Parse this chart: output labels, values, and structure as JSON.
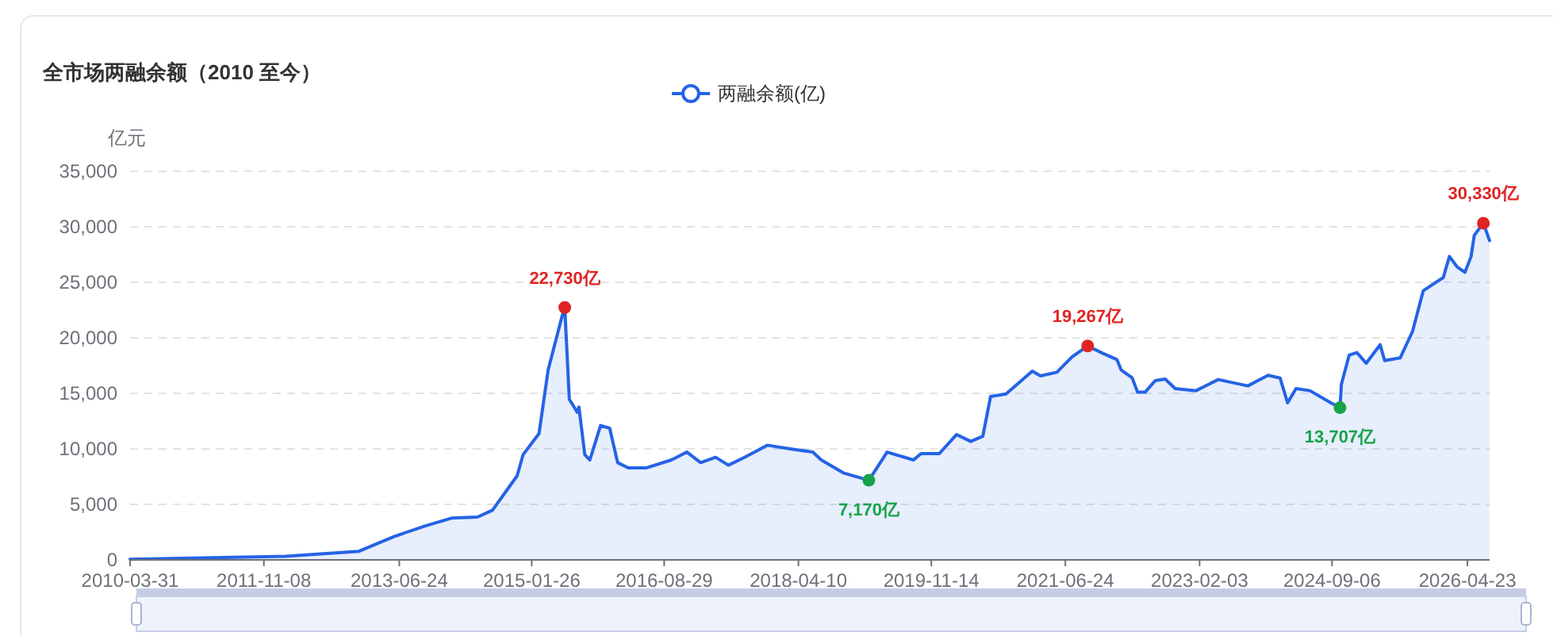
{
  "chart_data": {
    "type": "area",
    "title": "全市场两融余额（2010 至今）",
    "ylabel": "亿元",
    "legend": "top",
    "grid": "y",
    "xlim": [
      "2010-03-31",
      "2026-07-29"
    ],
    "xticks": [
      "2010-03-31",
      "2011-11-08",
      "2013-06-24",
      "2015-01-26",
      "2016-08-29",
      "2018-04-10",
      "2019-11-14",
      "2021-06-24",
      "2023-02-03",
      "2024-09-06",
      "2026-04-23"
    ],
    "ylim": [
      0,
      35000
    ],
    "yticks": [
      0,
      {
        "value": 5000,
        "label": "5,000"
      },
      {
        "value": 10000,
        "label": "10,000"
      },
      {
        "value": 15000,
        "label": "15,000"
      },
      {
        "value": 20000,
        "label": "20,000"
      },
      {
        "value": 25000,
        "label": "25,000"
      },
      {
        "value": 30000,
        "label": "30,000"
      },
      {
        "value": 35000,
        "label": "35,000"
      }
    ],
    "x": [
      "2010-03-31",
      "2012-02-12",
      "2012-12-27",
      "2013-06-01",
      "2013-10-14",
      "2014-02-08",
      "2014-06-02",
      "2014-08-07",
      "2014-11-23",
      "2014-12-19",
      "2015-02-27",
      "2015-04-08",
      "2015-06-07",
      "2015-06-20",
      "2015-07-10",
      "2015-08-14",
      "2015-08-21",
      "2015-09-16",
      "2015-10-08",
      "2015-11-24",
      "2016-01-03",
      "2016-02-07",
      "2016-03-24",
      "2016-06-13",
      "2016-09-30",
      "2016-12-07",
      "2017-02-05",
      "2017-04-12",
      "2017-06-07",
      "2017-08-13",
      "2017-09-30",
      "2017-11-24",
      "2018-03-04",
      "2018-06-12",
      "2018-07-19",
      "2018-10-27",
      "2019-02-13",
      "2019-05-04",
      "2019-08-28",
      "2019-09-30",
      "2019-12-19",
      "2020-03-04",
      "2020-05-05",
      "2020-06-27",
      "2020-07-31",
      "2020-10-07",
      "2021-01-30",
      "2021-03-07",
      "2021-05-18",
      "2021-07-24",
      "2021-09-30",
      "2021-12-06",
      "2022-02-05",
      "2022-02-24",
      "2022-04-13",
      "2022-05-07",
      "2022-06-09",
      "2022-07-23",
      "2022-09-05",
      "2022-10-19",
      "2023-01-18",
      "2023-04-26",
      "2023-09-03",
      "2023-10-16",
      "2023-12-01",
      "2024-01-22",
      "2024-02-24",
      "2024-04-01",
      "2024-06-01",
      "2024-09-01",
      "2024-10-11",
      "2024-10-17",
      "2024-11-20",
      "2024-12-24",
      "2025-02-03",
      "2025-04-05",
      "2025-04-25",
      "2025-07-02",
      "2025-08-25",
      "2025-10-11",
      "2025-11-14",
      "2026-01-07",
      "2026-02-03",
      "2026-03-09",
      "2026-04-12",
      "2026-05-09",
      "2026-05-23",
      "2026-07-02",
      "2026-07-29"
    ],
    "series": [
      {
        "name": "两融余额(亿)",
        "color": "#2563e6",
        "values": [
          50,
          330,
          760,
          2100,
          3050,
          3760,
          3860,
          4470,
          7570,
          9470,
          11380,
          17100,
          21860,
          22730,
          14470,
          13290,
          13760,
          9470,
          9000,
          12100,
          11860,
          8760,
          8290,
          8290,
          9000,
          9710,
          8760,
          9240,
          8530,
          9200,
          9710,
          10330,
          10000,
          9710,
          9000,
          7810,
          7170,
          9710,
          9000,
          9570,
          9570,
          11290,
          10670,
          11140,
          14710,
          14950,
          17000,
          16570,
          16900,
          18290,
          19267,
          18600,
          18050,
          17100,
          16400,
          15100,
          15100,
          16140,
          16290,
          15430,
          15240,
          16240,
          15670,
          16140,
          16620,
          16380,
          14140,
          15430,
          15240,
          14140,
          13707,
          15810,
          18430,
          18670,
          17710,
          19380,
          17950,
          18190,
          20570,
          24240,
          24710,
          25430,
          27330,
          26380,
          25900,
          27330,
          29240,
          30330,
          28760
        ]
      }
    ],
    "annotations": [
      {
        "text": "22,730亿",
        "x": "2015-06-20",
        "y": 22730
      },
      {
        "text": "7,170亿",
        "x": "2019-02-13",
        "y": 7170
      },
      {
        "text": "19,267亿",
        "x": "2021-09-30",
        "y": 19267
      },
      {
        "text": "13,707亿",
        "x": "2024-10-11",
        "y": 13707
      },
      {
        "text": "30,330亿",
        "x": "2026-07-02",
        "y": 30330
      }
    ]
  }
}
